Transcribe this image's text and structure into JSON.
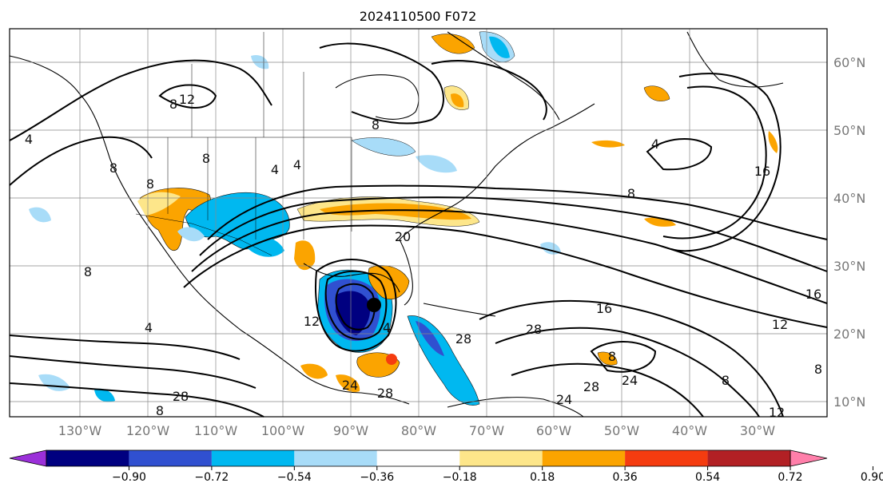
{
  "title": "2024110500 F072",
  "lon_labels": [
    "130°W",
    "120°W",
    "110°W",
    "100°W",
    "90°W",
    "80°W",
    "70°W",
    "60°W",
    "50°W",
    "40°W",
    "30°W"
  ],
  "lat_labels": [
    "60°N",
    "50°N",
    "40°N",
    "30°N",
    "20°N",
    "10°N"
  ],
  "colorbar": {
    "ticks": [
      "−0.90",
      "−0.72",
      "−0.54",
      "−0.36",
      "−0.18",
      "0.18",
      "0.36",
      "0.54",
      "0.72",
      "0.90"
    ],
    "colors": [
      "#9b30d9",
      "#000080",
      "#3050d0",
      "#00b8f0",
      "#a8dcf8",
      "#ffffff",
      "#fde68a",
      "#fba400",
      "#f53c10",
      "#b22024",
      "#ff7faa"
    ]
  },
  "contour_labels": [
    "8",
    "12",
    "4",
    "8",
    "8",
    "8",
    "4",
    "4",
    "8",
    "16",
    "8",
    "4",
    "20",
    "12",
    "16",
    "28",
    "12",
    "16",
    "24",
    "28",
    "24",
    "28",
    "8",
    "24",
    "28",
    "12",
    "4",
    "8",
    "8",
    "28",
    "8",
    "4",
    "8"
  ],
  "marker": "storm-center"
}
